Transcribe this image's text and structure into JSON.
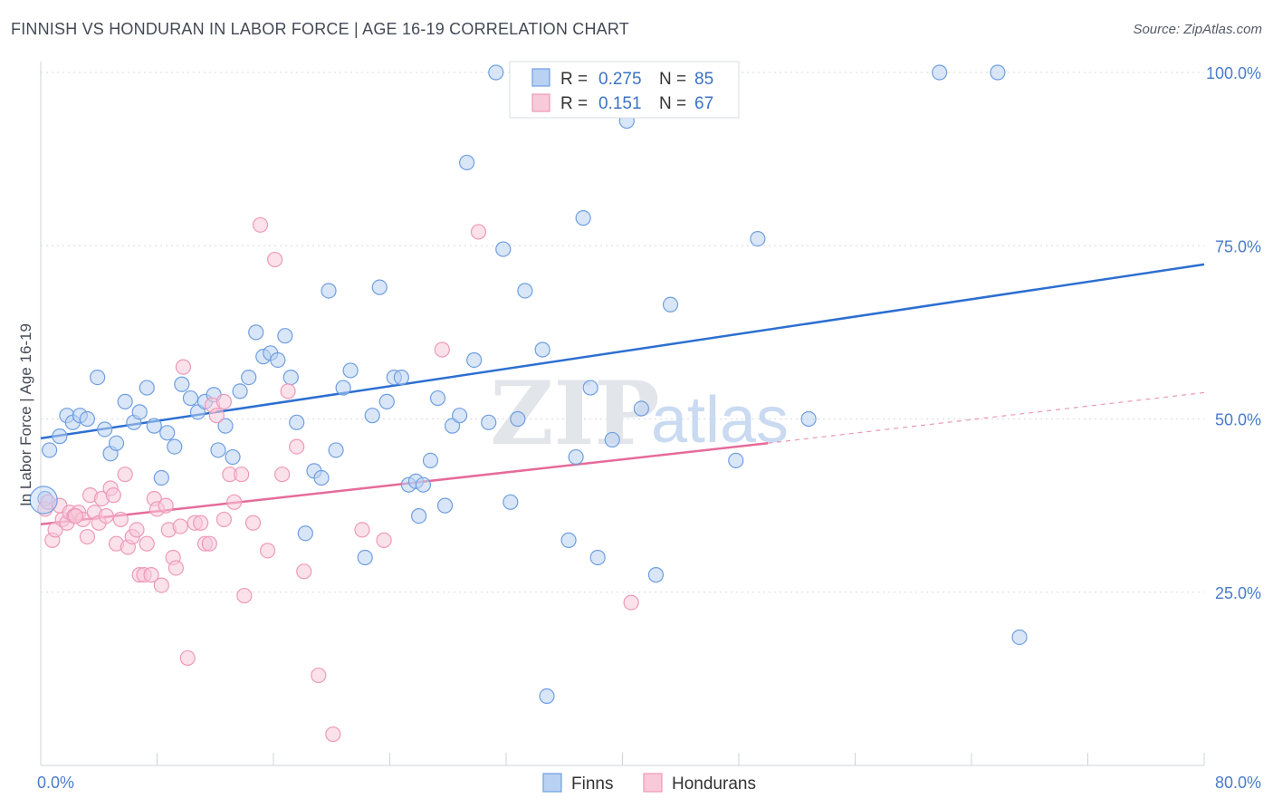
{
  "header": {
    "title": "FINNISH VS HONDURAN IN LABOR FORCE | AGE 16-19 CORRELATION CHART",
    "source": "Source: ZipAtlas.com"
  },
  "watermark": {
    "text_zip": "ZIP",
    "text_atlas": "atlas"
  },
  "chart_data": {
    "type": "scatter",
    "ylabel": "In Labor Force | Age 16-19",
    "xlim": [
      0,
      80
    ],
    "ylim": [
      0,
      103
    ],
    "x_tick_labels": [
      "0.0%",
      "80.0%"
    ],
    "y_ticks": [
      25,
      50,
      75,
      100
    ],
    "y_tick_labels": [
      "25.0%",
      "50.0%",
      "75.0%",
      "100.0%"
    ],
    "grid": true,
    "legend_position": "top-center",
    "stats": [
      {
        "r_label": "R =",
        "r_value": "0.275",
        "n_label": "N =",
        "n_value": "85"
      },
      {
        "r_label": "R =",
        "r_value": "0.151",
        "n_label": "N =",
        "n_value": "67"
      }
    ],
    "series": [
      {
        "name": "Finns",
        "color": "#6f9fe0",
        "fill": "#b9d1f3",
        "line_color": "#2d6fd1",
        "trend": {
          "x0": 0,
          "y0": 47.2,
          "x1": 80,
          "y1": 72.3
        },
        "points": [
          [
            0.3,
            38.5
          ],
          [
            0.6,
            45.5
          ],
          [
            1.3,
            47.5
          ],
          [
            1.8,
            50.5
          ],
          [
            2.2,
            49.5
          ],
          [
            2.7,
            50.5
          ],
          [
            3.2,
            50.0
          ],
          [
            3.9,
            56.0
          ],
          [
            4.4,
            48.5
          ],
          [
            4.8,
            45.0
          ],
          [
            5.2,
            46.5
          ],
          [
            5.8,
            52.5
          ],
          [
            6.4,
            49.5
          ],
          [
            6.8,
            51.0
          ],
          [
            7.3,
            54.5
          ],
          [
            7.8,
            49.0
          ],
          [
            8.3,
            41.5
          ],
          [
            8.7,
            48.0
          ],
          [
            9.2,
            46.0
          ],
          [
            9.7,
            55.0
          ],
          [
            10.3,
            53.0
          ],
          [
            10.8,
            51.0
          ],
          [
            11.3,
            52.5
          ],
          [
            11.9,
            53.5
          ],
          [
            12.2,
            45.5
          ],
          [
            12.7,
            49.0
          ],
          [
            13.2,
            44.5
          ],
          [
            13.7,
            54.0
          ],
          [
            14.3,
            56.0
          ],
          [
            14.8,
            62.5
          ],
          [
            15.3,
            59.0
          ],
          [
            15.8,
            59.5
          ],
          [
            16.3,
            58.5
          ],
          [
            16.8,
            62.0
          ],
          [
            17.2,
            56.0
          ],
          [
            17.6,
            49.5
          ],
          [
            18.2,
            33.5
          ],
          [
            18.8,
            42.5
          ],
          [
            19.3,
            41.5
          ],
          [
            19.8,
            68.5
          ],
          [
            20.3,
            45.5
          ],
          [
            20.8,
            54.5
          ],
          [
            21.3,
            57.0
          ],
          [
            22.3,
            30.0
          ],
          [
            22.8,
            50.5
          ],
          [
            23.3,
            69.0
          ],
          [
            23.8,
            52.5
          ],
          [
            24.3,
            56.0
          ],
          [
            24.8,
            56.0
          ],
          [
            25.3,
            40.5
          ],
          [
            25.8,
            41.0
          ],
          [
            26.3,
            40.5
          ],
          [
            26.8,
            44.0
          ],
          [
            27.3,
            53.0
          ],
          [
            27.8,
            37.5
          ],
          [
            28.3,
            49.0
          ],
          [
            28.8,
            50.5
          ],
          [
            29.3,
            87.0
          ],
          [
            29.8,
            58.5
          ],
          [
            30.8,
            49.5
          ],
          [
            31.3,
            100.0
          ],
          [
            31.8,
            74.5
          ],
          [
            32.8,
            50.0
          ],
          [
            33.3,
            68.5
          ],
          [
            34.5,
            60.0
          ],
          [
            34.8,
            10.0
          ],
          [
            36.3,
            32.5
          ],
          [
            36.8,
            44.5
          ],
          [
            37.3,
            79.0
          ],
          [
            37.8,
            54.5
          ],
          [
            38.3,
            30.0
          ],
          [
            39.3,
            47.0
          ],
          [
            40.3,
            93.0
          ],
          [
            41.3,
            51.5
          ],
          [
            42.3,
            27.5
          ],
          [
            43.3,
            66.5
          ],
          [
            47.8,
            44.0
          ],
          [
            49.3,
            76.0
          ],
          [
            52.8,
            50.0
          ],
          [
            61.8,
            100.0
          ],
          [
            65.8,
            100.0
          ],
          [
            67.3,
            18.5
          ],
          [
            38.8,
            100.0
          ],
          [
            32.3,
            38.0
          ],
          [
            26.0,
            36.0
          ]
        ]
      },
      {
        "name": "Hondurans",
        "color": "#ee9ab8",
        "fill": "#f8c9d9",
        "line_color": "#e66b9a",
        "trend": {
          "x0": 0,
          "y0": 34.8,
          "x1": 50,
          "y1": 46.5
        },
        "trend_ext": {
          "x0": 50,
          "y0": 46.5,
          "x1": 80,
          "y1": 53.8
        },
        "points": [
          [
            0.3,
            37.0
          ],
          [
            0.5,
            38.0
          ],
          [
            0.8,
            32.5
          ],
          [
            1.0,
            34.0
          ],
          [
            1.3,
            37.5
          ],
          [
            1.5,
            35.5
          ],
          [
            1.8,
            35.0
          ],
          [
            2.0,
            36.5
          ],
          [
            2.3,
            36.0
          ],
          [
            2.6,
            36.5
          ],
          [
            2.9,
            35.5
          ],
          [
            3.2,
            33.0
          ],
          [
            3.4,
            39.0
          ],
          [
            3.7,
            36.5
          ],
          [
            4.0,
            35.0
          ],
          [
            4.2,
            38.5
          ],
          [
            4.5,
            36.0
          ],
          [
            4.8,
            40.0
          ],
          [
            5.0,
            39.0
          ],
          [
            5.2,
            32.0
          ],
          [
            5.5,
            35.5
          ],
          [
            5.8,
            42.0
          ],
          [
            6.0,
            31.5
          ],
          [
            6.3,
            33.0
          ],
          [
            6.6,
            34.0
          ],
          [
            6.8,
            27.5
          ],
          [
            7.1,
            27.5
          ],
          [
            7.3,
            32.0
          ],
          [
            7.6,
            27.5
          ],
          [
            7.8,
            38.5
          ],
          [
            8.0,
            37.0
          ],
          [
            8.3,
            26.0
          ],
          [
            8.6,
            37.5
          ],
          [
            8.8,
            34.0
          ],
          [
            9.1,
            30.0
          ],
          [
            9.3,
            28.5
          ],
          [
            9.6,
            34.5
          ],
          [
            9.8,
            57.5
          ],
          [
            10.1,
            15.5
          ],
          [
            10.6,
            35.0
          ],
          [
            11.0,
            35.0
          ],
          [
            11.3,
            32.0
          ],
          [
            11.6,
            32.0
          ],
          [
            11.8,
            52.0
          ],
          [
            12.1,
            50.5
          ],
          [
            12.6,
            35.5
          ],
          [
            13.0,
            42.0
          ],
          [
            13.3,
            38.0
          ],
          [
            13.8,
            42.0
          ],
          [
            14.0,
            24.5
          ],
          [
            14.6,
            35.0
          ],
          [
            15.1,
            78.0
          ],
          [
            15.6,
            31.0
          ],
          [
            16.1,
            73.0
          ],
          [
            16.6,
            42.0
          ],
          [
            17.0,
            54.0
          ],
          [
            17.6,
            46.0
          ],
          [
            18.1,
            28.0
          ],
          [
            19.1,
            13.0
          ],
          [
            20.1,
            4.5
          ],
          [
            22.1,
            34.0
          ],
          [
            23.6,
            32.5
          ],
          [
            27.6,
            60.0
          ],
          [
            30.1,
            77.0
          ],
          [
            40.6,
            23.5
          ],
          [
            2.4,
            36.0
          ],
          [
            12.6,
            52.5
          ]
        ]
      }
    ]
  }
}
